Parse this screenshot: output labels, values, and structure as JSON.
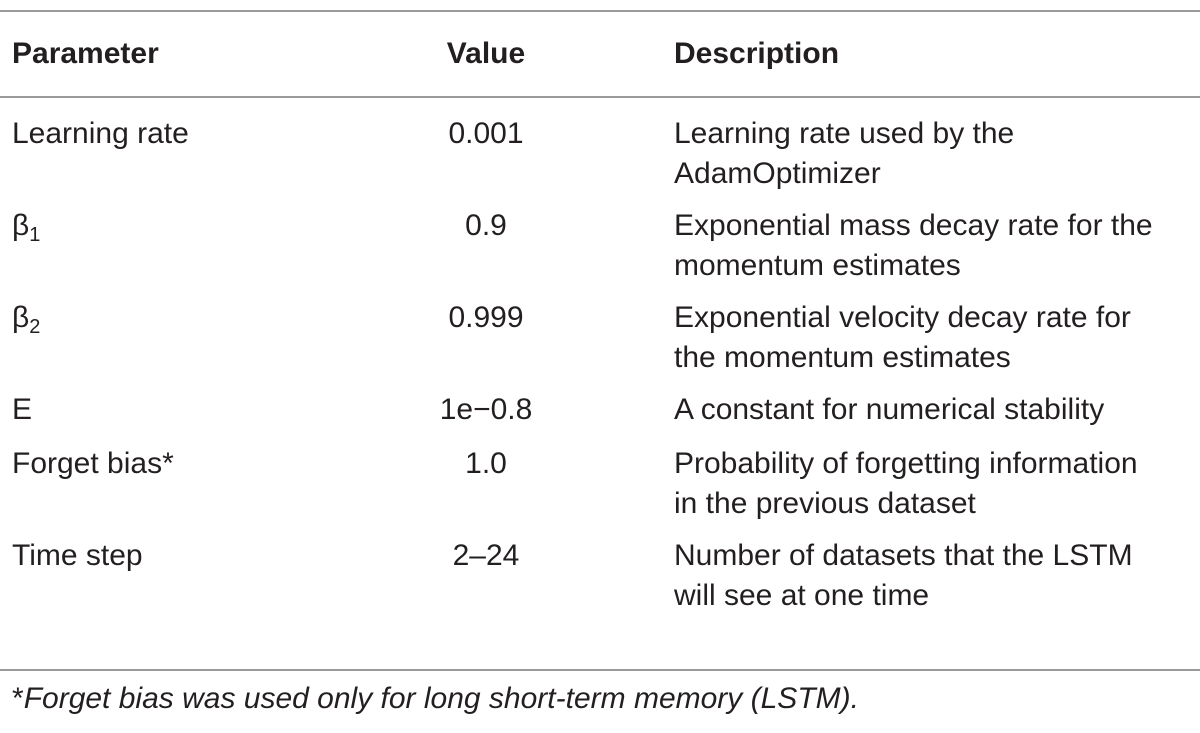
{
  "table": {
    "headers": {
      "parameter": "Parameter",
      "value": "Value",
      "description": "Description"
    },
    "rows": [
      {
        "param": "Learning rate",
        "param_sub": "",
        "value": "0.001",
        "desc_line1": "Learning rate used by the",
        "desc_line2": "AdamOptimizer"
      },
      {
        "param": "β",
        "param_sub": "1",
        "value": "0.9",
        "desc_line1": "Exponential mass decay rate for the",
        "desc_line2": "momentum estimates"
      },
      {
        "param": "β",
        "param_sub": "2",
        "value": "0.999",
        "desc_line1": "Exponential velocity decay rate for",
        "desc_line2": "the momentum estimates"
      },
      {
        "param": "E",
        "param_sub": "",
        "value": "1e−0.8",
        "desc_line1": "A constant for numerical stability",
        "desc_line2": ""
      },
      {
        "param": "Forget bias*",
        "param_sub": "",
        "value": "1.0",
        "desc_line1": "Probability of forgetting information",
        "desc_line2": "in the previous dataset"
      },
      {
        "param": "Time step",
        "param_sub": "",
        "value": "2–24",
        "desc_line1": "Number of datasets that the LSTM",
        "desc_line2": "will see at one time"
      }
    ]
  },
  "footnote": {
    "mark": "*",
    "text": "Forget bias was used only for long short-term memory (LSTM)."
  }
}
